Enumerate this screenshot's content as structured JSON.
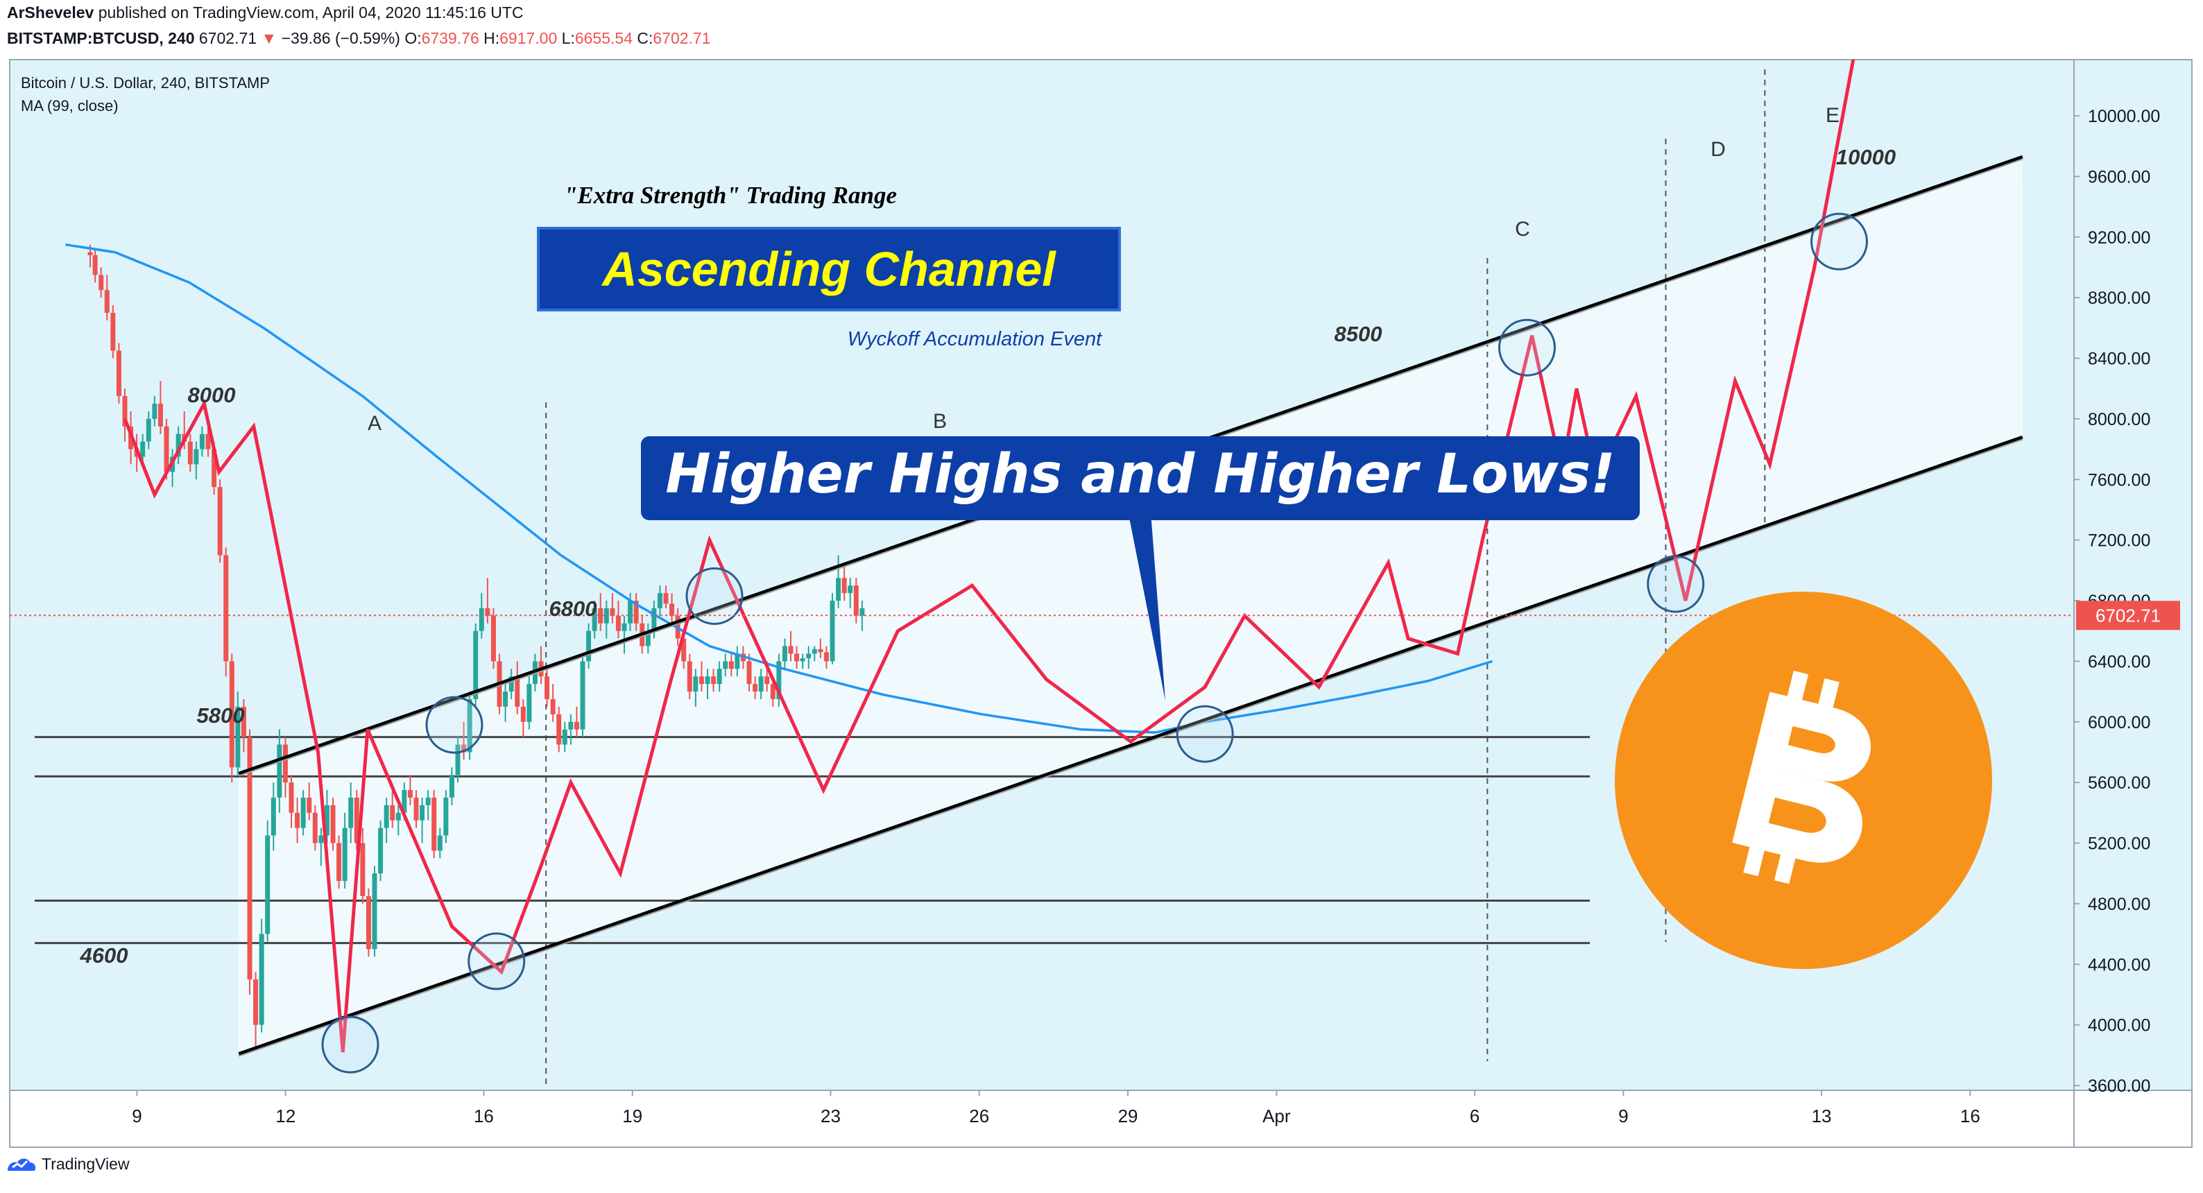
{
  "header": {
    "author": "ArShevelev",
    "published": "published on TradingView.com, April 04, 2020 11:45:16 UTC",
    "symbol": "BITSTAMP:BTCUSD, 240",
    "last": "6702.71",
    "change_arrow": "▼",
    "change": "−39.86 (−0.59%)",
    "o_label": "O:",
    "o": "6739.76",
    "h_label": "H:",
    "h": "6917.00",
    "l_label": "L:",
    "l": "6655.54",
    "c_label": "C:",
    "c": "6702.71"
  },
  "legend": {
    "title": "Bitcoin / U.S. Dollar, 240, BITSTAMP",
    "indicator": "MA (99, close)"
  },
  "annotations": {
    "subtitle": "\"Extra Strength\" Trading Range",
    "headline": "Ascending Channel",
    "event": "Wyckoff Accumulation Event",
    "callout": "Higher Highs and Higher Lows!",
    "phase_a": "A",
    "phase_b": "B",
    "phase_c": "C",
    "phase_d": "D",
    "phase_e": "E",
    "lvl_8000": "8000",
    "lvl_5800": "5800",
    "lvl_6800": "6800",
    "lvl_4600": "4600",
    "lvl_8500": "8500",
    "lvl_10000": "10000"
  },
  "price_tag": "6702.71",
  "footer": {
    "brand": "TradingView"
  },
  "colors": {
    "up": "#26a69a",
    "down": "#ef5350",
    "zigzag": "#f0274a",
    "ma": "#2196f3",
    "bg_zone": "#dff3fb",
    "channel": "#000000",
    "banner": "#0d3fa8",
    "headline_text": "#ffff00",
    "bitcoin": "#f7931a",
    "price_tag": "#ef5350"
  },
  "icons": [
    "tradingview-logo-icon",
    "bitcoin-logo-icon"
  ],
  "chart_data": {
    "type": "candlestick",
    "x_labels": [
      "9",
      "12",
      "16",
      "19",
      "23",
      "26",
      "29",
      "Apr",
      "6",
      "9",
      "13",
      "16"
    ],
    "y_ticks": [
      "10000.00",
      "9600.00",
      "9200.00",
      "8800.00",
      "8400.00",
      "8000.00",
      "7600.00",
      "7200.00",
      "6800.00",
      "6400.00",
      "6000.00",
      "5600.00",
      "5200.00",
      "4800.00",
      "4400.00",
      "4000.00",
      "3600.00"
    ],
    "ylim": [
      3550,
      10750
    ],
    "last_price": 6702.71,
    "horizontal_levels": [
      5900,
      5640,
      4820,
      4540
    ],
    "channel": {
      "upper": [
        [
          11.0,
          5660
        ],
        [
          47.0,
          9730
        ]
      ],
      "lower": [
        [
          11.0,
          3810
        ],
        [
          47.0,
          7880
        ]
      ]
    },
    "zigzag": [
      [
        8.7,
        8000
      ],
      [
        9.3,
        7500
      ],
      [
        10.3,
        8100
      ],
      [
        10.6,
        7650
      ],
      [
        11.3,
        7950
      ],
      [
        12.6,
        5800
      ],
      [
        13.1,
        3820
      ],
      [
        13.6,
        5950
      ],
      [
        15.3,
        4650
      ],
      [
        16.3,
        4350
      ],
      [
        17.1,
        5050
      ],
      [
        17.7,
        5600
      ],
      [
        18.7,
        5000
      ],
      [
        19.7,
        6250
      ],
      [
        20.5,
        7200
      ],
      [
        22.8,
        5550
      ],
      [
        24.3,
        6600
      ],
      [
        25.8,
        6900
      ],
      [
        27.3,
        6280
      ],
      [
        29.0,
        5870
      ],
      [
        30.5,
        6230
      ],
      [
        31.3,
        6700
      ],
      [
        32.8,
        6230
      ],
      [
        34.2,
        7050
      ],
      [
        34.6,
        6550
      ],
      [
        35.6,
        6450
      ],
      [
        36.1,
        7200
      ],
      [
        37.1,
        8550
      ],
      [
        37.7,
        7650
      ],
      [
        38.0,
        8200
      ],
      [
        38.4,
        7600
      ],
      [
        39.2,
        8150
      ],
      [
        40.2,
        6800
      ],
      [
        41.2,
        8250
      ],
      [
        41.9,
        7700
      ],
      [
        42.8,
        9000
      ],
      [
        43.6,
        10400
      ]
    ],
    "ma99": [
      [
        7.5,
        9150
      ],
      [
        8.5,
        9100
      ],
      [
        10.0,
        8900
      ],
      [
        11.5,
        8600
      ],
      [
        13.5,
        8150
      ],
      [
        15.0,
        7750
      ],
      [
        17.5,
        7100
      ],
      [
        19.0,
        6780
      ],
      [
        20.5,
        6500
      ],
      [
        22.0,
        6350
      ],
      [
        24.0,
        6180
      ],
      [
        26.0,
        6050
      ],
      [
        28.0,
        5950
      ],
      [
        29.5,
        5930
      ],
      [
        30.5,
        6000
      ],
      [
        32.0,
        6080
      ],
      [
        33.5,
        6170
      ],
      [
        35.0,
        6270
      ],
      [
        36.3,
        6400
      ]
    ],
    "candles": [
      [
        8.0,
        9100,
        9150,
        9000,
        9080
      ],
      [
        8.1,
        9080,
        9120,
        8900,
        8950
      ],
      [
        8.22,
        8950,
        9000,
        8800,
        8850
      ],
      [
        8.34,
        8850,
        8950,
        8650,
        8700
      ],
      [
        8.46,
        8700,
        8750,
        8400,
        8450
      ],
      [
        8.58,
        8450,
        8500,
        8100,
        8150
      ],
      [
        8.7,
        8150,
        8200,
        7850,
        7950
      ],
      [
        8.82,
        7950,
        8050,
        7700,
        7800
      ],
      [
        8.94,
        7800,
        7900,
        7650,
        7750
      ],
      [
        9.06,
        7750,
        7900,
        7700,
        7850
      ],
      [
        9.18,
        7850,
        8050,
        7800,
        8000
      ],
      [
        9.3,
        8000,
        8150,
        7950,
        8100
      ],
      [
        9.42,
        8100,
        8250,
        7900,
        7950
      ],
      [
        9.54,
        7950,
        8000,
        7600,
        7650
      ],
      [
        9.66,
        7650,
        7800,
        7550,
        7750
      ],
      [
        9.78,
        7750,
        7950,
        7700,
        7900
      ],
      [
        9.9,
        7900,
        8050,
        7800,
        7850
      ],
      [
        10.02,
        7850,
        7900,
        7650,
        7700
      ],
      [
        10.14,
        7700,
        7850,
        7600,
        7800
      ],
      [
        10.26,
        7800,
        7950,
        7750,
        7900
      ],
      [
        10.38,
        7900,
        7950,
        7750,
        7800
      ],
      [
        10.5,
        7800,
        7850,
        7500,
        7550
      ],
      [
        10.62,
        7550,
        7600,
        7050,
        7100
      ],
      [
        10.74,
        7100,
        7150,
        6300,
        6400
      ],
      [
        10.86,
        6400,
        6450,
        5600,
        5700
      ],
      [
        10.98,
        5700,
        6200,
        5650,
        6100
      ],
      [
        11.1,
        6100,
        6150,
        5800,
        5900
      ],
      [
        11.22,
        5900,
        5950,
        4200,
        4300
      ],
      [
        11.34,
        4300,
        4350,
        3850,
        4000
      ],
      [
        11.46,
        4000,
        4700,
        3950,
        4600
      ],
      [
        11.58,
        4600,
        5350,
        4550,
        5250
      ],
      [
        11.7,
        5250,
        5600,
        5150,
        5500
      ],
      [
        11.82,
        5500,
        5950,
        5400,
        5850
      ],
      [
        11.94,
        5850,
        5900,
        5500,
        5600
      ],
      [
        12.06,
        5600,
        5650,
        5300,
        5400
      ],
      [
        12.18,
        5400,
        5500,
        5200,
        5300
      ],
      [
        12.3,
        5300,
        5550,
        5250,
        5500
      ],
      [
        12.42,
        5500,
        5600,
        5350,
        5400
      ],
      [
        12.54,
        5400,
        5450,
        5150,
        5200
      ],
      [
        12.66,
        5200,
        5300,
        5050,
        5250
      ],
      [
        12.78,
        5250,
        5550,
        5200,
        5450
      ],
      [
        12.9,
        5450,
        5500,
        5150,
        5200
      ],
      [
        13.02,
        5200,
        5250,
        4900,
        4950
      ],
      [
        13.14,
        4950,
        5400,
        4900,
        5300
      ],
      [
        13.26,
        5300,
        5600,
        5200,
        5500
      ],
      [
        13.38,
        5500,
        5550,
        5150,
        5200
      ],
      [
        13.5,
        5200,
        5300,
        4800,
        4850
      ],
      [
        13.62,
        4850,
        4900,
        4450,
        4500
      ],
      [
        13.74,
        4500,
        5050,
        4450,
        5000
      ],
      [
        13.86,
        5000,
        5350,
        4950,
        5300
      ],
      [
        13.98,
        5300,
        5500,
        5200,
        5450
      ],
      [
        14.1,
        5450,
        5550,
        5300,
        5350
      ],
      [
        14.22,
        5350,
        5450,
        5250,
        5400
      ],
      [
        14.34,
        5400,
        5600,
        5350,
        5550
      ],
      [
        14.46,
        5550,
        5650,
        5450,
        5500
      ],
      [
        14.58,
        5500,
        5550,
        5300,
        5350
      ],
      [
        14.7,
        5350,
        5500,
        5200,
        5450
      ],
      [
        14.82,
        5450,
        5550,
        5350,
        5500
      ],
      [
        14.94,
        5500,
        5550,
        5100,
        5150
      ],
      [
        15.06,
        5150,
        5300,
        5100,
        5250
      ],
      [
        15.18,
        5250,
        5550,
        5200,
        5500
      ],
      [
        15.3,
        5500,
        5700,
        5450,
        5650
      ],
      [
        15.42,
        5650,
        5900,
        5600,
        5850
      ],
      [
        15.54,
        5850,
        6000,
        5750,
        5800
      ],
      [
        15.66,
        5800,
        6200,
        5750,
        6150
      ],
      [
        15.78,
        6150,
        6650,
        6100,
        6600
      ],
      [
        15.9,
        6600,
        6850,
        6550,
        6750
      ],
      [
        16.02,
        6750,
        6950,
        6650,
        6700
      ],
      [
        16.14,
        6700,
        6750,
        6350,
        6400
      ],
      [
        16.26,
        6400,
        6450,
        6050,
        6100
      ],
      [
        16.38,
        6100,
        6250,
        6000,
        6200
      ],
      [
        16.5,
        6200,
        6350,
        6150,
        6300
      ],
      [
        16.62,
        6300,
        6400,
        6050,
        6100
      ],
      [
        16.74,
        6100,
        6150,
        5900,
        6000
      ],
      [
        16.86,
        6000,
        6300,
        5950,
        6250
      ],
      [
        16.98,
        6250,
        6450,
        6200,
        6400
      ],
      [
        17.1,
        6400,
        6500,
        6250,
        6300
      ],
      [
        17.22,
        6300,
        6350,
        6100,
        6150
      ],
      [
        17.34,
        6150,
        6250,
        6000,
        6050
      ],
      [
        17.46,
        6050,
        6100,
        5800,
        5850
      ],
      [
        17.58,
        5850,
        6000,
        5800,
        5950
      ],
      [
        17.7,
        5950,
        6050,
        5850,
        6000
      ],
      [
        17.82,
        6000,
        6100,
        5900,
        5950
      ],
      [
        17.94,
        5950,
        6450,
        5900,
        6400
      ],
      [
        18.06,
        6400,
        6650,
        6350,
        6600
      ],
      [
        18.18,
        6600,
        6800,
        6550,
        6750
      ],
      [
        18.3,
        6750,
        6850,
        6600,
        6650
      ],
      [
        18.42,
        6650,
        6800,
        6550,
        6750
      ],
      [
        18.54,
        6750,
        6850,
        6650,
        6700
      ],
      [
        18.66,
        6700,
        6800,
        6550,
        6600
      ],
      [
        18.78,
        6600,
        6700,
        6450,
        6650
      ],
      [
        18.9,
        6650,
        6850,
        6600,
        6800
      ],
      [
        19.02,
        6800,
        6850,
        6600,
        6650
      ],
      [
        19.14,
        6650,
        6700,
        6450,
        6500
      ],
      [
        19.26,
        6500,
        6650,
        6450,
        6600
      ],
      [
        19.38,
        6600,
        6800,
        6550,
        6750
      ],
      [
        19.5,
        6750,
        6900,
        6700,
        6850
      ],
      [
        19.62,
        6850,
        6900,
        6750,
        6780
      ],
      [
        19.74,
        6780,
        6850,
        6650,
        6700
      ],
      [
        19.86,
        6700,
        6750,
        6500,
        6550
      ],
      [
        19.98,
        6550,
        6600,
        6350,
        6400
      ],
      [
        20.1,
        6400,
        6450,
        6150,
        6200
      ],
      [
        20.22,
        6200,
        6350,
        6100,
        6300
      ],
      [
        20.34,
        6300,
        6400,
        6200,
        6250
      ],
      [
        20.46,
        6250,
        6350,
        6150,
        6300
      ],
      [
        20.58,
        6300,
        6350,
        6200,
        6250
      ],
      [
        20.7,
        6250,
        6400,
        6200,
        6350
      ],
      [
        20.82,
        6350,
        6450,
        6300,
        6400
      ],
      [
        20.94,
        6400,
        6450,
        6300,
        6350
      ],
      [
        21.06,
        6350,
        6500,
        6300,
        6450
      ],
      [
        21.18,
        6450,
        6500,
        6350,
        6400
      ],
      [
        21.3,
        6400,
        6450,
        6200,
        6250
      ],
      [
        21.42,
        6250,
        6300,
        6150,
        6200
      ],
      [
        21.54,
        6200,
        6350,
        6150,
        6300
      ],
      [
        21.66,
        6300,
        6400,
        6200,
        6250
      ],
      [
        21.78,
        6250,
        6300,
        6100,
        6150
      ],
      [
        21.9,
        6150,
        6450,
        6100,
        6400
      ],
      [
        22.02,
        6400,
        6550,
        6350,
        6500
      ],
      [
        22.14,
        6500,
        6600,
        6400,
        6450
      ],
      [
        22.26,
        6450,
        6500,
        6350,
        6400
      ],
      [
        22.38,
        6400,
        6450,
        6350,
        6420
      ],
      [
        22.5,
        6420,
        6500,
        6350,
        6450
      ],
      [
        22.62,
        6450,
        6500,
        6400,
        6480
      ],
      [
        22.74,
        6480,
        6550,
        6420,
        6460
      ],
      [
        22.86,
        6460,
        6500,
        6350,
        6400
      ],
      [
        22.98,
        6400,
        6850,
        6380,
        6800
      ],
      [
        23.1,
        6800,
        7100,
        6750,
        6950
      ],
      [
        23.22,
        6950,
        7050,
        6800,
        6850
      ],
      [
        23.34,
        6850,
        6950,
        6750,
        6900
      ],
      [
        23.46,
        6900,
        6950,
        6650,
        6700
      ],
      [
        23.58,
        6700,
        6800,
        6600,
        6750
      ]
    ]
  }
}
